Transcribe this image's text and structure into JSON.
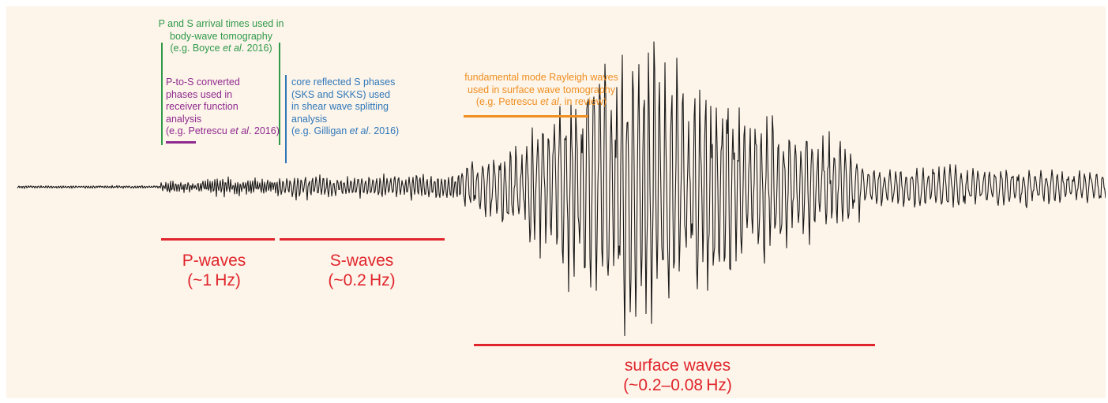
{
  "annotations": {
    "body_wave": {
      "line1": "P and S arrival times used in",
      "line2": "body-wave tomography",
      "line3_pre": "(e.g. Boyce ",
      "line3_em": "et al",
      "line3_post": ". 2016)"
    },
    "receiver_function": {
      "line1": "P-to-S converted",
      "line2": "phases used in",
      "line3": "receiver function",
      "line4": "analysis",
      "line5_pre": "(e.g. Petrescu ",
      "line5_em": "et al",
      "line5_post": ". 2016)"
    },
    "shear_wave_splitting": {
      "line1": "core reflected S phases",
      "line2": "(SKS and SKKS) used",
      "line3": "in shear wave splitting",
      "line4": "analysis",
      "line5_pre": "(e.g. Gilligan ",
      "line5_em": "et al",
      "line5_post": ". 2016)"
    },
    "surface_wave_tomography": {
      "line1": "fundamental mode Rayleigh waves",
      "line2": "used in surface wave tomography",
      "line3_pre": "(e.g. Petrescu ",
      "line3_em": "et al",
      "line3_post": ". in review)"
    }
  },
  "wave_labels": {
    "p_waves": {
      "name": "P-waves",
      "freq": "(~1 Hz)"
    },
    "s_waves": {
      "name": "S-waves",
      "freq": "(~0.2 Hz)"
    },
    "surface_waves": {
      "name": "surface waves",
      "freq": "(~0.2–0.08 Hz)"
    }
  },
  "colors": {
    "background": "#fdf4ea",
    "green": "#2e9a4a",
    "purple": "#8e2a8e",
    "blue": "#2f78b8",
    "orange": "#ef8f1f",
    "red": "#e0262c",
    "trace": "#1a1a1a"
  }
}
